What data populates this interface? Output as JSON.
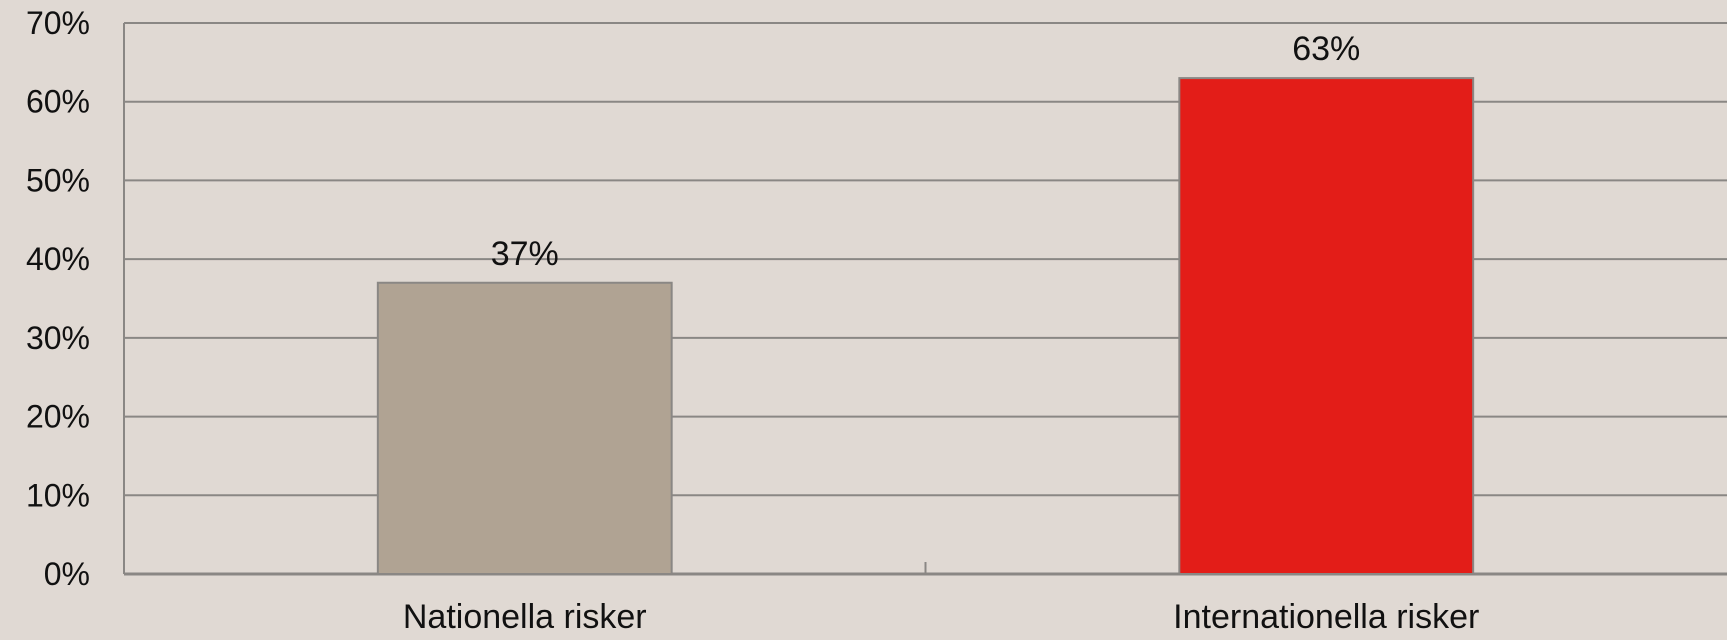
{
  "chart_data": {
    "type": "bar",
    "categories": [
      "Nationella risker",
      "Internationella risker"
    ],
    "values": [
      37,
      63
    ],
    "value_labels": [
      "37%",
      "63%"
    ],
    "bar_colors": [
      "#b0a393",
      "#e31d18"
    ],
    "ylim": [
      0,
      70
    ],
    "ytick_step": 10,
    "ytick_labels": [
      "0%",
      "10%",
      "20%",
      "30%",
      "40%",
      "50%",
      "60%",
      "70%"
    ],
    "grid": true,
    "legend": "none",
    "title": "",
    "xlabel": "",
    "ylabel": ""
  },
  "colors": {
    "background": "#e0d9d3",
    "gridline": "#8a8784",
    "bar_border": "#8a8784"
  }
}
